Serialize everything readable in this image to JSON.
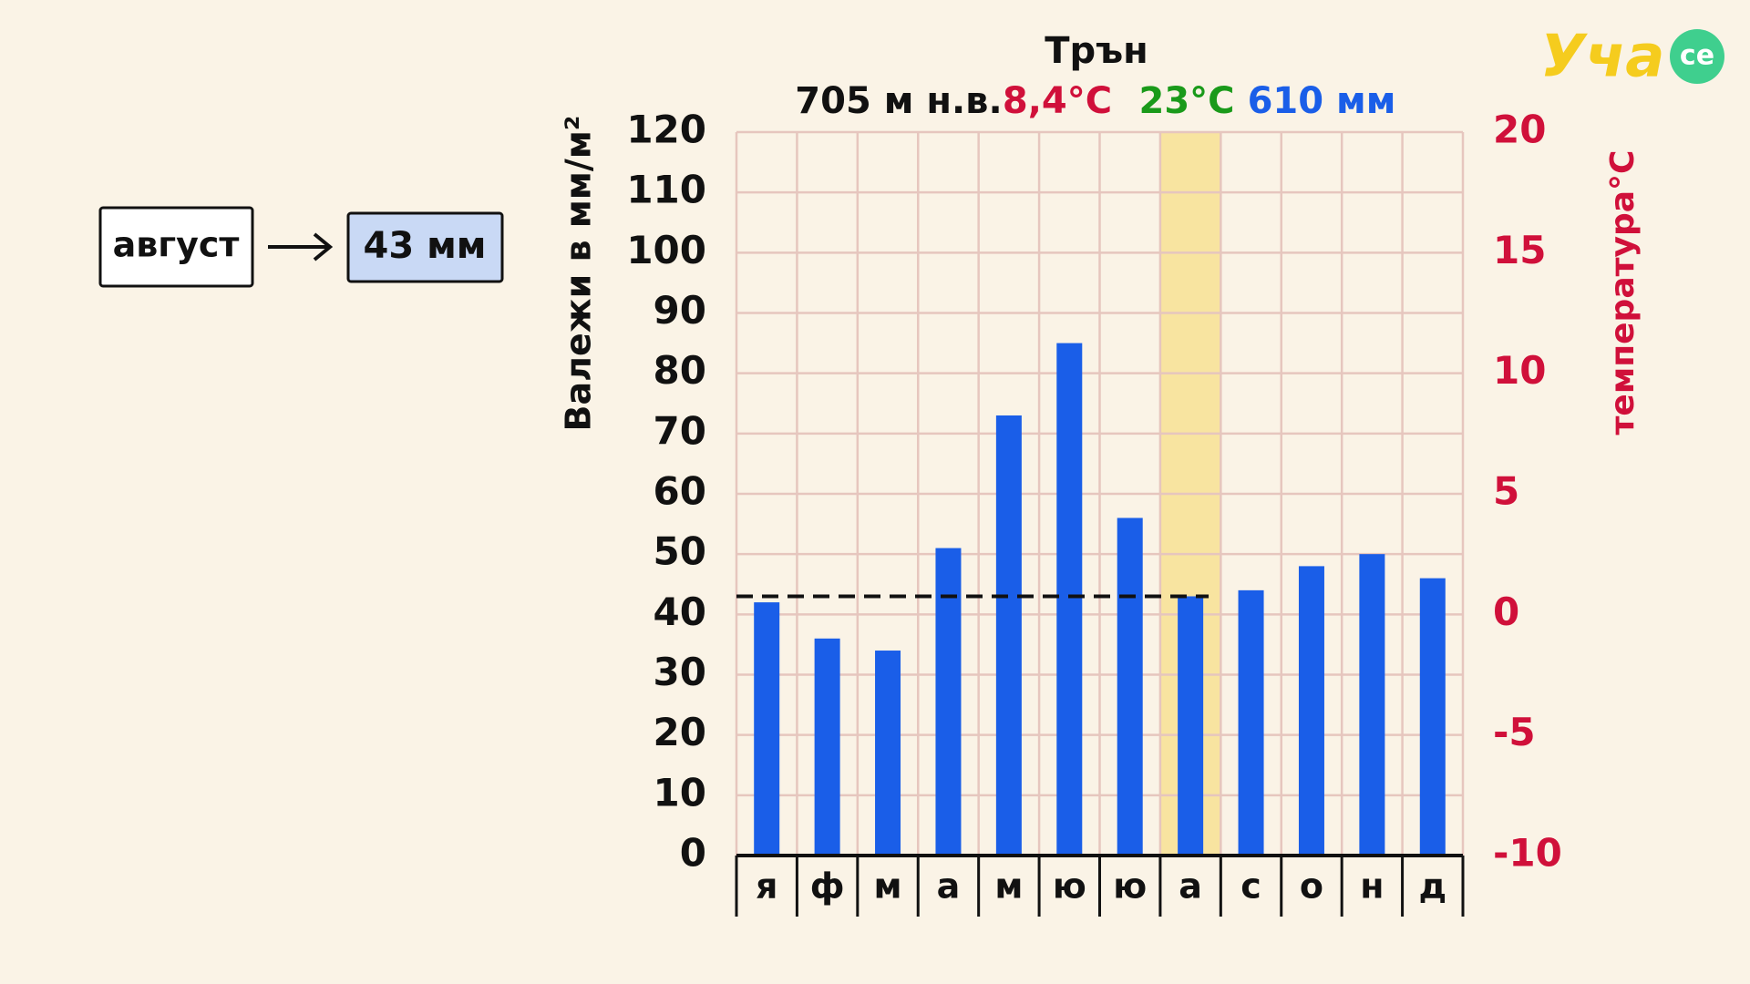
{
  "chart_data": {
    "type": "bar",
    "title": "Трън",
    "subtitle": [
      {
        "text": "705 м н.в.",
        "color": "#111111"
      },
      {
        "text": "8,4°C",
        "color": "#d0103a"
      },
      {
        "text": "23°C",
        "color": "#1a9a1a"
      },
      {
        "text": "610 мм",
        "color": "#1a5ee8"
      }
    ],
    "ylabel": "Валежи в мм/м²",
    "y2label": "температура°C",
    "categories": [
      "я",
      "ф",
      "м",
      "а",
      "м",
      "ю",
      "ю",
      "а",
      "с",
      "о",
      "н",
      "д"
    ],
    "values": [
      42,
      36,
      34,
      51,
      73,
      85,
      56,
      43,
      44,
      48,
      50,
      46
    ],
    "color": "#1a5ee8",
    "ylim": [
      0,
      120
    ],
    "yticks": [
      0,
      10,
      20,
      30,
      40,
      50,
      60,
      70,
      80,
      90,
      100,
      110,
      120
    ],
    "y2lim": [
      -10,
      20
    ],
    "y2ticks": [
      -10,
      -5,
      0,
      5,
      10,
      15,
      20
    ],
    "y2color": "#d0103a",
    "grid": true,
    "highlight": 7,
    "annotation": {
      "text": "август",
      "value_label": "43 мм"
    },
    "logo": {
      "main": "Уча",
      "suffix": "се"
    }
  }
}
